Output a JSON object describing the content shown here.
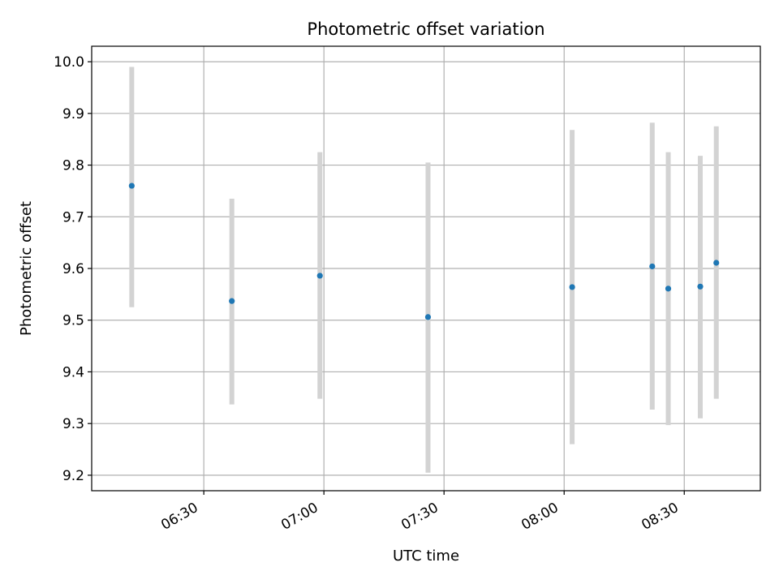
{
  "chart_data": {
    "type": "scatter",
    "title": "Photometric offset variation",
    "xlabel": "UTC time",
    "ylabel": "Photometric offset",
    "x_ticks": [
      "06:30",
      "07:00",
      "07:30",
      "08:00",
      "08:30"
    ],
    "x_tick_values": [
      "06:30",
      "07:00",
      "07:30",
      "08:00",
      "08:30"
    ],
    "xlim": [
      "06:02",
      "08:49"
    ],
    "y_ticks": [
      "9.2",
      "9.3",
      "9.4",
      "9.5",
      "9.6",
      "9.7",
      "9.8",
      "9.9",
      "10.0"
    ],
    "ylim": [
      9.17,
      10.03
    ],
    "grid": true,
    "colors": {
      "point": "#1f77b4",
      "errorbar": "#d3d3d3",
      "grid": "#b0b0b0"
    },
    "points": [
      {
        "x": "06:12",
        "y": 9.76,
        "low": 9.525,
        "high": 9.99
      },
      {
        "x": "06:37",
        "y": 9.537,
        "low": 9.337,
        "high": 9.735
      },
      {
        "x": "06:59",
        "y": 9.586,
        "low": 9.348,
        "high": 9.825
      },
      {
        "x": "07:26",
        "y": 9.506,
        "low": 9.205,
        "high": 9.805
      },
      {
        "x": "08:02",
        "y": 9.564,
        "low": 9.26,
        "high": 9.868
      },
      {
        "x": "08:22",
        "y": 9.604,
        "low": 9.327,
        "high": 9.882
      },
      {
        "x": "08:26",
        "y": 9.561,
        "low": 9.297,
        "high": 9.825
      },
      {
        "x": "08:34",
        "y": 9.565,
        "low": 9.31,
        "high": 9.818
      },
      {
        "x": "08:38",
        "y": 9.611,
        "low": 9.348,
        "high": 9.875
      }
    ]
  }
}
